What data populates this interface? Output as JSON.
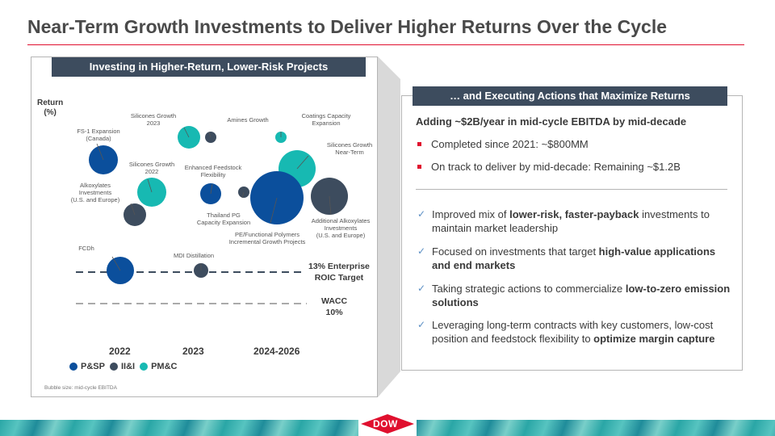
{
  "title": "Near-Term Growth Investments to Deliver Higher Returns Over the Cycle",
  "left_header": "Investing in Higher-Return, Lower-Risk Projects",
  "right_header": "… and Executing Actions that Maximize Returns",
  "chart_data": {
    "type": "scatter",
    "ylabel": "Return\n(%)",
    "x_categories": [
      "2022",
      "2023",
      "2024-2026"
    ],
    "reference_lines": [
      {
        "label": "13% Enterprise ROIC Target",
        "label_line1": "13% Enterprise",
        "label_line2": "ROIC Target",
        "color": "#3d4c5e"
      },
      {
        "label": "WACC 10%",
        "label_line1": "WACC",
        "label_line2": "10%",
        "color": "#aaaaaa"
      }
    ],
    "legend": [
      {
        "name": "P&SP",
        "color": "#0b4f9c"
      },
      {
        "name": "II&I",
        "color": "#3d4c5e"
      },
      {
        "name": "PM&C",
        "color": "#17b9b2"
      }
    ],
    "bubbles": [
      {
        "label": "FS-1 Expansion\n(Canada)",
        "segment": "P&SP",
        "period": "2022"
      },
      {
        "label": "Silicones Growth\n2023",
        "segment": "PM&C",
        "period": "2023"
      },
      {
        "label": "Amines Growth",
        "segment": "II&I",
        "period": "2023"
      },
      {
        "label": "Coatings Capacity\nExpansion",
        "segment": "PM&C",
        "period": "2024-2026"
      },
      {
        "label": "Silicones Growth\nNear-Term",
        "segment": "PM&C",
        "period": "2024-2026"
      },
      {
        "label": "Silicones Growth\n2022",
        "segment": "PM&C",
        "period": "2022"
      },
      {
        "label": "Enhanced  Feedstock\nFlexibility",
        "segment": "P&SP",
        "period": "2023"
      },
      {
        "label": "Alkoxylates\nInvestments\n(U.S. and Europe)",
        "segment": "II&I",
        "period": "2022"
      },
      {
        "label": "Thailand PG\nCapacity Expansion",
        "segment": "II&I",
        "period": "2023"
      },
      {
        "label": "PE/Functional  Polymers\nIncremental  Growth Projects",
        "segment": "P&SP",
        "period": "2024-2026"
      },
      {
        "label": "Additional  Alkoxylates\nInvestments\n(U.S. and  Europe)",
        "segment": "II&I",
        "period": "2024-2026"
      },
      {
        "label": "FCDh",
        "segment": "P&SP",
        "period": "2022"
      },
      {
        "label": "MDI Distillation",
        "segment": "II&I",
        "period": "2023"
      }
    ],
    "footnote": "Bubble size: mid-cycle EBITDA"
  },
  "right": {
    "adding": "Adding ~$2B/year in mid-cycle EBITDA by mid-decade",
    "bullets": [
      "Completed since 2021: ~$800MM",
      "On track to deliver by mid-decade: Remaining ~$1.2B"
    ],
    "checks": [
      {
        "before": "Improved mix of ",
        "bold": "lower-risk, faster-payback",
        "after": " investments to maintain market leadership"
      },
      {
        "before": "Focused on investments that target ",
        "bold": "high-value applications and end markets",
        "after": ""
      },
      {
        "before": "Taking strategic actions to commercialize ",
        "bold": "low-to-zero emission solutions",
        "after": ""
      },
      {
        "before": "Leveraging long-term contracts with key customers, low-cost position and feedstock flexibility to ",
        "bold": "optimize margin capture",
        "after": ""
      }
    ]
  },
  "logo": "DOW"
}
